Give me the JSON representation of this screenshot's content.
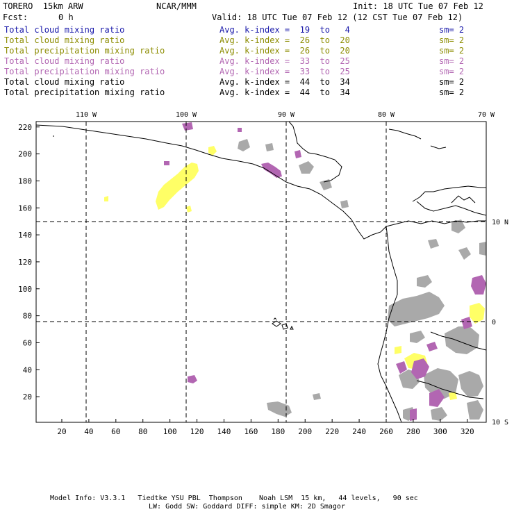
{
  "header": {
    "model": "TORERO  15km ARW",
    "org": "NCAR/MMM",
    "init": "Init: 18 UTC Tue 07 Feb 12",
    "fcst_label": "Fcst:",
    "fcst_value": "0 h",
    "valid": "Valid: 18 UTC Tue 07 Feb 12 (12 CST Tue 07 Feb 12)"
  },
  "legend": [
    {
      "field": "Total cloud mixing ratio",
      "k": "Avg. k-index =  19  to   4",
      "sm": "sm= 2",
      "color": "#1a1aaa"
    },
    {
      "field": "Total cloud mixing ratio",
      "k": "Avg. k-index =  26  to  20",
      "sm": "sm= 2",
      "color": "#8c8c00"
    },
    {
      "field": "Total precipitation mixing ratio",
      "k": "Avg. k-index =  26  to  20",
      "sm": "sm= 2",
      "color": "#8c8c00"
    },
    {
      "field": "Total cloud mixing ratio",
      "k": "Avg. k-index =  33  to  25",
      "sm": "sm= 2",
      "color": "#b266b2"
    },
    {
      "field": "Total precipitation mixing ratio",
      "k": "Avg. k-index =  33  to  25",
      "sm": "sm= 2",
      "color": "#b266b2"
    },
    {
      "field": "Total cloud mixing ratio",
      "k": "Avg. k-index =  44  to  34",
      "sm": "sm= 2",
      "color": "#000000"
    },
    {
      "field": "Total precipitation mixing ratio",
      "k": "Avg. k-index =  44  to  34",
      "sm": "sm= 2",
      "color": "#000000"
    }
  ],
  "grid": {
    "x_ticks": [
      20,
      40,
      60,
      80,
      100,
      120,
      140,
      160,
      180,
      200,
      220,
      240,
      260,
      280,
      300,
      320
    ],
    "y_ticks": [
      20,
      40,
      60,
      80,
      100,
      120,
      140,
      160,
      180,
      200,
      220
    ],
    "x_range": [
      1,
      334
    ],
    "y_range": [
      1,
      224
    ],
    "lon_labels": [
      "110 W",
      "100 W",
      "90 W",
      "80 W",
      "70 W"
    ],
    "lat_labels": [
      "10 N",
      "0",
      "10 S"
    ]
  },
  "colors": {
    "gray": "#a9a9a9",
    "yellow": "#ffff66",
    "purple": "#b266b2",
    "coast": "#000000"
  },
  "footer": {
    "line1": "Model Info: V3.3.1   Tiedtke YSU PBL  Thompson    Noah LSM  15 km,   44 levels,   90 sec",
    "line2": "LW: Godd SW: Goddard DIFF: simple KM: 2D Smagor"
  }
}
